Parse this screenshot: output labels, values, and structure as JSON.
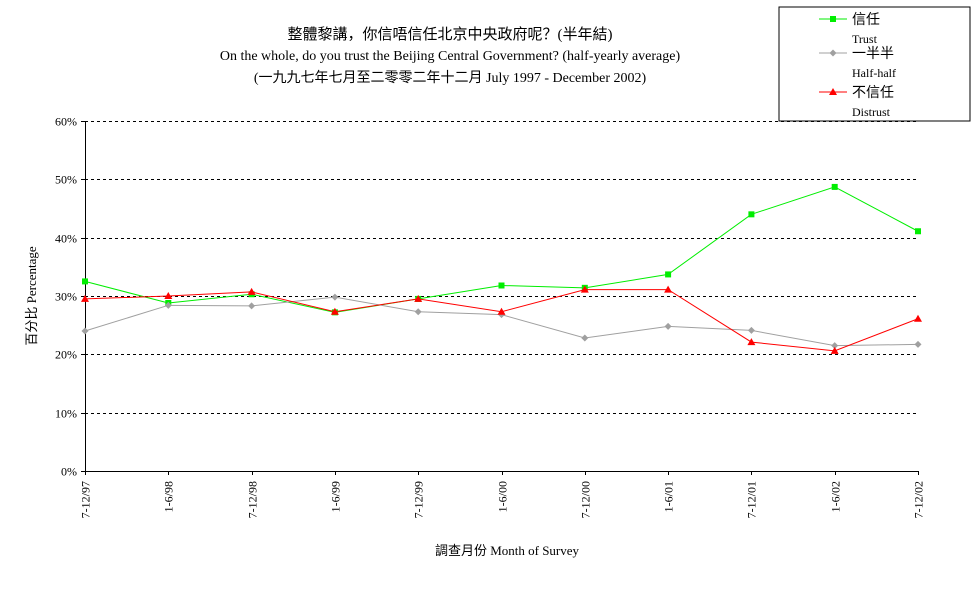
{
  "chart_data": {
    "type": "line",
    "title_zh": "整體黎講，你信唔信任北京中央政府呢？(半年結)",
    "title_en": "On the whole, do you trust the Beijing Central Government?  (half-yearly average)",
    "subtitle": "(一九九七年七月至二零零二年十二月 July 1997 - December 2002)",
    "xlabel": "調查月份 Month of Survey",
    "ylabel": "百分比 Percentage",
    "ylim": [
      0,
      60
    ],
    "yticks": [
      "0%",
      "10%",
      "20%",
      "30%",
      "40%",
      "50%",
      "60%"
    ],
    "ytick_values": [
      0,
      10,
      20,
      30,
      40,
      50,
      60
    ],
    "grid": "horizontal-dashed",
    "legend_position": "top-right",
    "categories": [
      "7-12/97",
      "1-6/98",
      "7-12/98",
      "1-6/99",
      "7-12/99",
      "1-6/00",
      "7-12/00",
      "1-6/01",
      "7-12/01",
      "1-6/02",
      "7-12/02"
    ],
    "series": [
      {
        "name": "信任",
        "name_en": "Trust",
        "color": "#00ee00",
        "marker": "square",
        "values": [
          32.5,
          28.8,
          30.3,
          27.2,
          29.5,
          31.8,
          31.4,
          33.7,
          44.0,
          48.7,
          41.1
        ]
      },
      {
        "name": "一半半",
        "name_en": "Half-half",
        "color": "#a0a0a0",
        "marker": "diamond",
        "values": [
          24.0,
          28.4,
          28.3,
          29.8,
          27.3,
          26.8,
          22.8,
          24.8,
          24.1,
          21.5,
          21.7
        ]
      },
      {
        "name": "不信任",
        "name_en": "Distrust",
        "color": "#ff0000",
        "marker": "triangle",
        "values": [
          29.5,
          30.0,
          30.7,
          27.3,
          29.5,
          27.3,
          31.1,
          31.1,
          22.1,
          20.6,
          26.1
        ]
      }
    ]
  }
}
